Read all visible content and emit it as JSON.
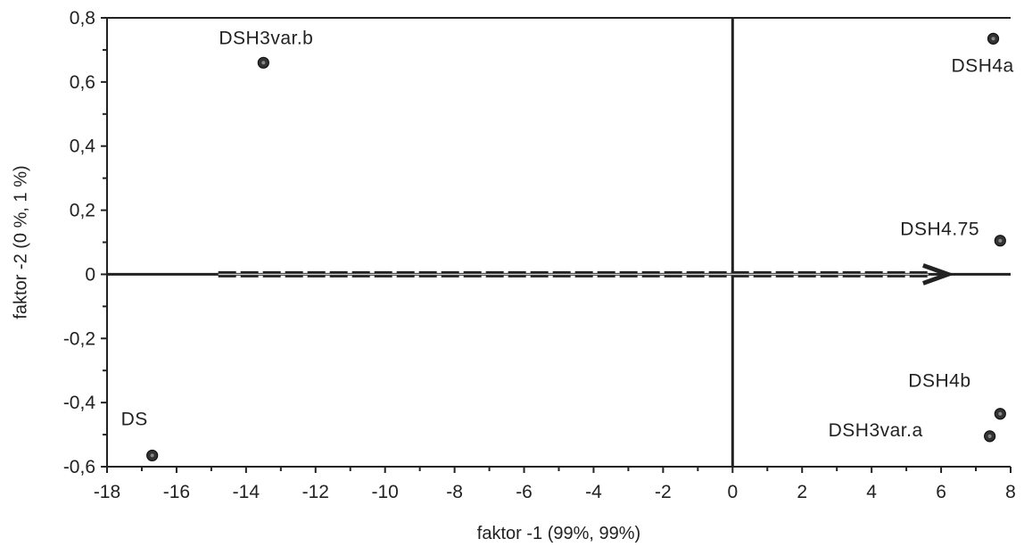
{
  "chart_data": {
    "type": "scatter",
    "xlabel": "faktor -1 (99%, 99%)",
    "ylabel": "faktor -2 (0 %, 1 %)",
    "xlim": [
      -18,
      8
    ],
    "ylim": [
      -0.6,
      0.8
    ],
    "x_ticks": [
      -18,
      -16,
      -14,
      -12,
      -10,
      -8,
      -6,
      -4,
      -2,
      0,
      2,
      4,
      6,
      8
    ],
    "y_ticks": [
      -0.6,
      -0.4,
      -0.2,
      0,
      0.2,
      0.4,
      0.6,
      0.8
    ],
    "x_tick_labels": [
      "-18",
      "-16",
      "-14",
      "-12",
      "-10",
      "-8",
      "-6",
      "-4",
      "-2",
      "0",
      "2",
      "4",
      "6",
      "8"
    ],
    "y_tick_labels": [
      "-0,6",
      "-0,4",
      "-0,2",
      "0",
      "0,2",
      "0,4",
      "0,6",
      "0,8"
    ],
    "grid": false,
    "points": [
      {
        "label": "DS",
        "x": -16.7,
        "y": -0.565
      },
      {
        "label": "DSH3var.b",
        "x": -13.5,
        "y": 0.66
      },
      {
        "label": "DSH4a",
        "x": 7.5,
        "y": 0.735
      },
      {
        "label": "DSH4.75",
        "x": 7.7,
        "y": 0.105
      },
      {
        "label": "DSH4b",
        "x": 7.7,
        "y": -0.435
      },
      {
        "label": "DSH3var.a",
        "x": 7.4,
        "y": -0.505
      }
    ],
    "arrow": {
      "x_start": -14.8,
      "x_end": 6.2,
      "y": 0
    }
  }
}
